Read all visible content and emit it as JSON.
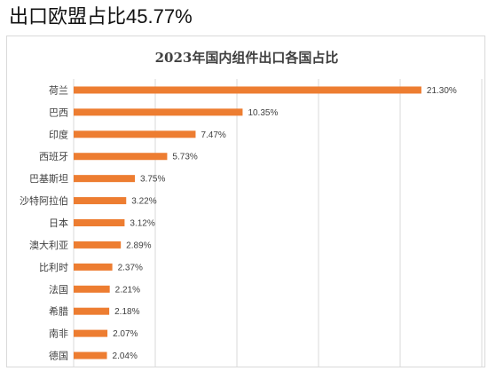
{
  "heading": {
    "prefix": "出口欧盟占比",
    "value": "45.77%"
  },
  "chart_data": {
    "type": "bar",
    "orientation": "horizontal",
    "title": "2023年国内组件出口各国占比",
    "categories": [
      "荷兰",
      "巴西",
      "印度",
      "西班牙",
      "巴基斯坦",
      "沙特阿拉伯",
      "日本",
      "澳大利亚",
      "比利时",
      "法国",
      "希腊",
      "南非",
      "德国"
    ],
    "values": [
      21.3,
      10.35,
      7.47,
      5.73,
      3.75,
      3.22,
      3.12,
      2.89,
      2.37,
      2.21,
      2.18,
      2.07,
      2.04
    ],
    "value_labels": [
      "21.30%",
      "10.35%",
      "7.47%",
      "5.73%",
      "3.75%",
      "3.22%",
      "3.12%",
      "2.89%",
      "2.37%",
      "2.21%",
      "2.18%",
      "2.07%",
      "2.04%"
    ],
    "xlim": [
      0,
      25
    ],
    "grid": true,
    "bar_color": "#ED7D31",
    "grid_color": "#d9d9d9",
    "xlabel": "",
    "ylabel": ""
  }
}
